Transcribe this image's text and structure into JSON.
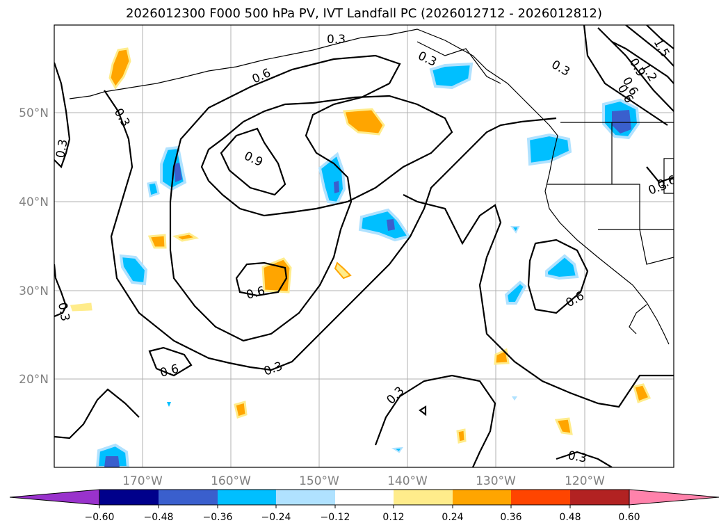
{
  "title": "2026012300 F000 500 hPa PV, IVT Landfall PC (2026012712 - 2026012812)",
  "axes": {
    "lat_labels": [
      "50°N",
      "40°N",
      "30°N",
      "20°N"
    ],
    "lon_labels": [
      "170°W",
      "160°W",
      "150°W",
      "140°W",
      "130°W",
      "120°W"
    ]
  },
  "contour_labels": [
    "0.3",
    "0.6",
    "0.9",
    "0.3",
    "0.6",
    "0.9",
    "1.2",
    "1.5",
    "0.6",
    "0.3",
    "0.3",
    "0.3",
    "0.6",
    "0.6",
    "0.6",
    "0.3",
    "0.3",
    "0.3",
    "0.3",
    "0.6",
    "0.3"
  ],
  "colorbar": {
    "ticks": [
      "−0.60",
      "−0.48",
      "−0.36",
      "−0.24",
      "−0.12",
      "0.12",
      "0.24",
      "0.36",
      "0.48",
      "0.60"
    ],
    "colors": [
      "#9932CC",
      "#00008B",
      "#3A5FCD",
      "#00BFFF",
      "#B0E2FF",
      "#FFFFFF",
      "#FFEC8B",
      "#FFA500",
      "#FF4500",
      "#B22222",
      "#FF82AB"
    ]
  }
}
